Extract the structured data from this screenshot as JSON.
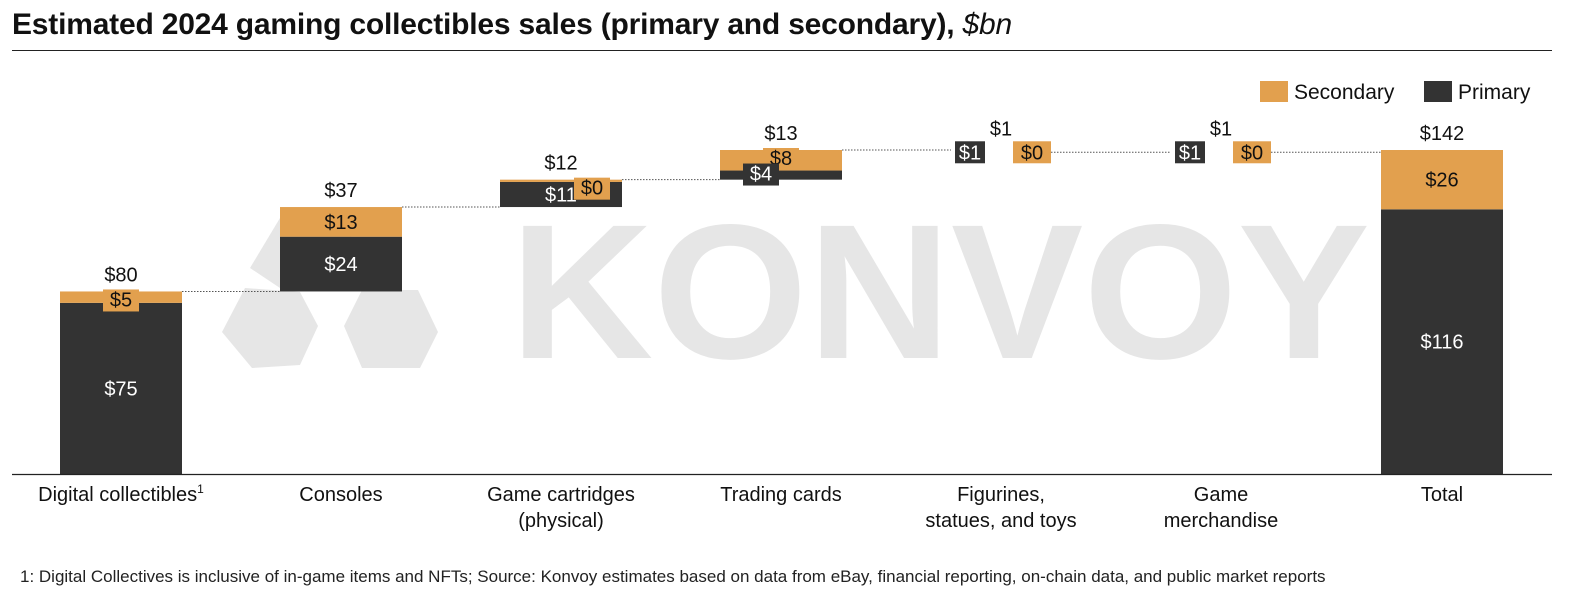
{
  "title": "Estimated 2024 gaming collectibles sales (primary and secondary),",
  "title_unit": "$bn",
  "watermark": "KONVOY",
  "footnote": "1: Digital Collectives is inclusive of in-game items and NFTs; Source: Konvoy estimates based on data from eBay, financial reporting, on-chain data, and public market reports",
  "colors": {
    "primary": "#333333",
    "secondary": "#E2A04E",
    "watermark": "#E6E6E6",
    "axis": "#222222"
  },
  "chart_data": {
    "type": "waterfall",
    "title": "Estimated 2024 gaming collectibles sales (primary and secondary), $bn",
    "ylim": [
      0,
      142
    ],
    "legend": {
      "placement": "top-right",
      "entries": [
        "Secondary",
        "Primary"
      ]
    },
    "categories": [
      {
        "label": "Digital collectibles",
        "sup": "1",
        "lines": [
          "Digital collectibles"
        ],
        "primary": 75,
        "secondary": 5,
        "total": 80,
        "base": 0,
        "layout": "stacked",
        "labels": {
          "total": "$80",
          "primary": "$75",
          "secondary": "$5"
        }
      },
      {
        "label": "Consoles",
        "lines": [
          "Consoles"
        ],
        "primary": 24,
        "secondary": 13,
        "total": 37,
        "base": 80,
        "layout": "stacked",
        "labels": {
          "total": "$37",
          "primary": "$24",
          "secondary": "$13"
        }
      },
      {
        "label": "Game cartridges (physical)",
        "lines": [
          "Game cartridges",
          "(physical)"
        ],
        "primary": 11,
        "secondary": 0,
        "total": 12,
        "base": 117,
        "layout": "stacked",
        "labels": {
          "total": "$12",
          "primary": "$11",
          "secondary": "$0"
        }
      },
      {
        "label": "Trading cards",
        "lines": [
          "Trading cards"
        ],
        "primary": 4,
        "secondary": 8,
        "total": 13,
        "base": 129,
        "layout": "stacked",
        "labels": {
          "total": "$13",
          "primary": "$4",
          "secondary": "$8"
        }
      },
      {
        "label": "Figurines, statues, and toys",
        "lines": [
          "Figurines,",
          "statues, and toys"
        ],
        "primary": 1,
        "secondary": 0,
        "total": 1,
        "base": 141,
        "layout": "flat",
        "labels": {
          "total": "$1",
          "primary": "$1",
          "secondary": "$0"
        }
      },
      {
        "label": "Game merchandise",
        "lines": [
          "Game",
          "merchandise"
        ],
        "primary": 1,
        "secondary": 0,
        "total": 1,
        "base": 141,
        "layout": "flat",
        "labels": {
          "total": "$1",
          "primary": "$1",
          "secondary": "$0"
        }
      },
      {
        "label": "Total",
        "lines": [
          "Total"
        ],
        "primary": 116,
        "secondary": 26,
        "total": 142,
        "base": 0,
        "layout": "stacked",
        "labels": {
          "total": "$142",
          "primary": "$116",
          "secondary": "$26"
        }
      }
    ]
  }
}
